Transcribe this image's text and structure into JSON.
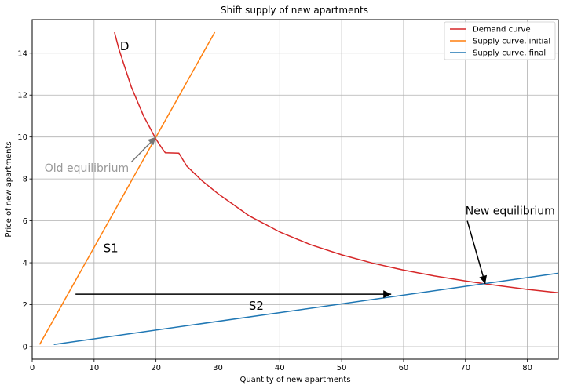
{
  "chart_data": {
    "type": "line",
    "title": "Shift supply of new apartments",
    "xlabel": "Quantity of new apartments",
    "ylabel": "Price of new apartments",
    "xlim": [
      0,
      85
    ],
    "ylim": [
      -0.6,
      15.6
    ],
    "xticks": [
      0,
      10,
      20,
      30,
      40,
      50,
      60,
      70,
      80
    ],
    "yticks": [
      0,
      2,
      4,
      6,
      8,
      10,
      12,
      14
    ],
    "grid": true,
    "legend_position": "top-right",
    "series": [
      {
        "name": "Demand curve",
        "color": "#d62728",
        "points": [
          [
            13.3,
            15.0
          ],
          [
            14,
            14.2
          ],
          [
            15,
            13.3
          ],
          [
            16,
            12.4
          ],
          [
            17,
            11.7
          ],
          [
            18,
            11.0
          ],
          [
            19,
            10.45
          ],
          [
            20,
            9.9
          ],
          [
            21,
            9.45
          ],
          [
            21.5,
            9.25
          ],
          [
            23.7,
            9.23
          ],
          [
            25,
            8.6
          ],
          [
            27.5,
            7.9
          ],
          [
            30,
            7.3
          ],
          [
            35,
            6.25
          ],
          [
            40,
            5.47
          ],
          [
            45,
            4.86
          ],
          [
            50,
            4.38
          ],
          [
            55,
            3.98
          ],
          [
            60,
            3.65
          ],
          [
            65,
            3.37
          ],
          [
            70,
            3.13
          ],
          [
            73,
            3.0
          ],
          [
            75,
            2.92
          ],
          [
            80,
            2.73
          ],
          [
            85,
            2.57
          ]
        ]
      },
      {
        "name": "Supply curve, initial",
        "color": "#ff7f0e",
        "points": [
          [
            1.2,
            0.1
          ],
          [
            29.5,
            15.0
          ]
        ]
      },
      {
        "name": "Supply curve, final",
        "color": "#1f77b4",
        "points": [
          [
            3.5,
            0.1
          ],
          [
            85,
            3.5
          ]
        ]
      }
    ],
    "annotations": [
      {
        "label": "D",
        "x": 14.2,
        "y": 14.15,
        "color": "#000000",
        "size": 15
      },
      {
        "label": "S1",
        "x": 11.5,
        "y": 4.5,
        "color": "#000000",
        "size": 15
      },
      {
        "label": "S2",
        "x": 35,
        "y": 1.75,
        "color": "#000000",
        "size": 15
      },
      {
        "label": "Old equilibrium",
        "x": 2.0,
        "y": 8.35,
        "color": "#999999",
        "size": 14,
        "arrow_from": [
          16.0,
          8.8
        ],
        "arrow_to": [
          20.0,
          10.0
        ],
        "arrow_color": "#777777"
      },
      {
        "label": "New equilibrium",
        "x": 70.0,
        "y": 6.3,
        "color": "#000000",
        "size": 14,
        "arrow_from": [
          70.3,
          6.0
        ],
        "arrow_to": [
          73.2,
          3.0
        ],
        "arrow_color": "#000000"
      },
      {
        "label": "",
        "x": 7.0,
        "y": 2.5,
        "color": "#000000",
        "size": 0,
        "arrow_from": [
          7.0,
          2.5
        ],
        "arrow_to": [
          58.0,
          2.5
        ],
        "arrow_color": "#000000"
      }
    ]
  }
}
